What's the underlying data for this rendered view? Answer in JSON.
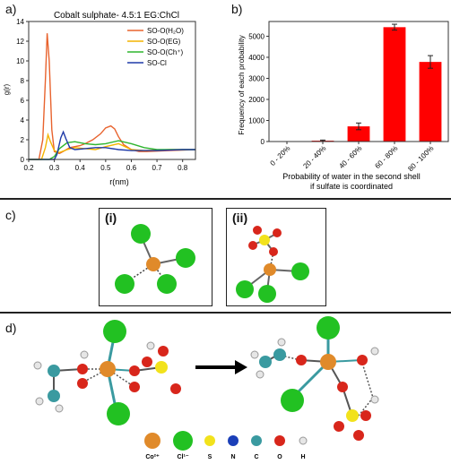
{
  "panels": {
    "a": "a)",
    "b": "b)",
    "c": "c)",
    "d": "d)",
    "c_boxes": [
      "(i)",
      "(ii)"
    ]
  },
  "colors": {
    "h2o": "#e8632e",
    "eg": "#f4b400",
    "ch": "#2fb52f",
    "cl": "#1f3aa8",
    "bar": "#ff0000",
    "cobalt": "#e08a2a",
    "chlorine": "#22c122",
    "sulfur": "#f2e21c",
    "nitrogen": "#1a3fb8",
    "carbon": "#3a9aa0",
    "oxygen": "#d8261b",
    "hydrogen": "#e6e6e6"
  },
  "chart_data": [
    {
      "type": "line",
      "title": "Cobalt sulphate- 4.5:1 EG:ChCl",
      "xlabel": "r(nm)",
      "ylabel": "g(r)",
      "xlim": [
        0.2,
        0.85
      ],
      "ylim": [
        0,
        14
      ],
      "xticks": [
        "0.2",
        "0.3",
        "0.4",
        "0.5",
        "0.6",
        "0.7",
        "0.8"
      ],
      "yticks": [
        "0",
        "2",
        "4",
        "6",
        "8",
        "10",
        "12",
        "14"
      ],
      "legend_position": "top-right",
      "series": [
        {
          "name": "SO-O(H₂O)",
          "color_key": "h2o",
          "x": [
            0.2,
            0.24,
            0.255,
            0.265,
            0.272,
            0.28,
            0.29,
            0.3,
            0.32,
            0.34,
            0.36,
            0.38,
            0.4,
            0.42,
            0.45,
            0.48,
            0.5,
            0.52,
            0.535,
            0.55,
            0.57,
            0.6,
            0.63,
            0.66,
            0.7,
            0.75,
            0.8,
            0.85
          ],
          "y": [
            0,
            0,
            2.0,
            8.0,
            12.8,
            10.0,
            3.0,
            0.8,
            0.6,
            0.9,
            1.2,
            1.3,
            1.4,
            1.6,
            2.0,
            2.6,
            3.2,
            3.4,
            3.1,
            2.3,
            1.5,
            1.0,
            0.8,
            0.8,
            0.85,
            0.9,
            0.95,
            1.0
          ]
        },
        {
          "name": "SO-O(EG)",
          "color_key": "eg",
          "x": [
            0.2,
            0.25,
            0.265,
            0.275,
            0.285,
            0.3,
            0.32,
            0.35,
            0.38,
            0.42,
            0.46,
            0.5,
            0.55,
            0.6,
            0.65,
            0.7,
            0.75,
            0.8,
            0.85
          ],
          "y": [
            0,
            0,
            1.2,
            2.5,
            1.8,
            0.9,
            0.7,
            1.0,
            1.2,
            1.1,
            1.0,
            1.3,
            1.6,
            1.0,
            0.9,
            0.95,
            1.0,
            1.0,
            1.0
          ]
        },
        {
          "name": "SO-O(Ch⁺)",
          "color_key": "ch",
          "x": [
            0.2,
            0.28,
            0.3,
            0.32,
            0.35,
            0.38,
            0.42,
            0.46,
            0.5,
            0.55,
            0.6,
            0.65,
            0.7,
            0.75,
            0.8,
            0.85
          ],
          "y": [
            0,
            0,
            0.3,
            1.1,
            1.7,
            1.8,
            1.6,
            1.5,
            1.6,
            1.9,
            1.6,
            1.2,
            1.0,
            1.0,
            1.0,
            1.0
          ]
        },
        {
          "name": "SO-Cl",
          "color_key": "cl",
          "x": [
            0.2,
            0.3,
            0.31,
            0.325,
            0.335,
            0.345,
            0.36,
            0.38,
            0.42,
            0.46,
            0.5,
            0.55,
            0.6,
            0.65,
            0.7,
            0.75,
            0.8,
            0.85
          ],
          "y": [
            0,
            0,
            0.5,
            2.2,
            2.8,
            2.1,
            1.2,
            1.0,
            1.1,
            1.2,
            1.2,
            1.0,
            0.9,
            0.9,
            0.9,
            0.95,
            1.0,
            1.0
          ]
        }
      ]
    },
    {
      "type": "bar",
      "categories": [
        "0 - 20%",
        "20 - 40%",
        "40 - 60%",
        "60 - 80%",
        "80 - 100%"
      ],
      "values": [
        0,
        40,
        720,
        5430,
        3780
      ],
      "errors": [
        0,
        30,
        160,
        140,
        300
      ],
      "xlabel": "Probability of water in the second shell\nif sulfate is coordinated",
      "ylabel": "Frequency of each probability",
      "ylim": [
        0,
        5700
      ],
      "yticks": [
        "0",
        "1000",
        "2000",
        "3000",
        "4000",
        "5000"
      ]
    }
  ],
  "legend_d": [
    {
      "symbol": "Co²⁺",
      "color_key": "cobalt"
    },
    {
      "symbol": "Cl¹⁻",
      "color_key": "chlorine"
    },
    {
      "symbol": "S",
      "color_key": "sulfur"
    },
    {
      "symbol": "N",
      "color_key": "nitrogen"
    },
    {
      "symbol": "C",
      "color_key": "carbon"
    },
    {
      "symbol": "O",
      "color_key": "oxygen"
    },
    {
      "symbol": "H",
      "color_key": "hydrogen"
    }
  ]
}
